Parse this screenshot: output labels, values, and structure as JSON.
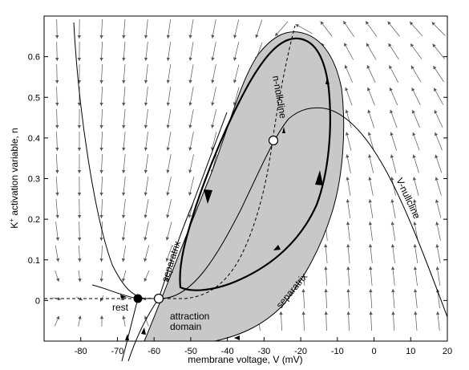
{
  "figure": {
    "x_axis_label": "membrane voltage, V (mV)",
    "y_axis_label_main": "K",
    "y_axis_label_sup": "+",
    "y_axis_label_rest": " activation variable, n",
    "x_ticks": [
      "-80",
      "-70",
      "-60",
      "-50",
      "-40",
      "-30",
      "-20",
      "-10",
      "0",
      "10",
      "20"
    ],
    "y_ticks": [
      "0",
      "0.1",
      "0.2",
      "0.3",
      "0.4",
      "0.5",
      "0.6"
    ],
    "labels": {
      "rest": "rest",
      "attraction_line1": "attraction",
      "attraction_line2": "domain",
      "separatrix_upper": "separatrix",
      "separatrix_lower": "separatrix",
      "n_nullcline": "n-nullcline",
      "v_nullcline": "V-nullcline"
    },
    "colors": {
      "shaded_domain": "#c8c8c8",
      "curves": "#000000"
    }
  },
  "chart_data": {
    "type": "phase-portrait",
    "x_axis": {
      "label": "membrane voltage, V (mV)",
      "range": [
        -90,
        20
      ],
      "ticks": [
        -80,
        -70,
        -60,
        -50,
        -40,
        -30,
        -20,
        -10,
        0,
        10,
        20
      ]
    },
    "y_axis": {
      "label": "K+ activation variable, n",
      "range": [
        -0.1,
        0.7
      ],
      "ticks": [
        0,
        0.1,
        0.2,
        0.3,
        0.4,
        0.5,
        0.6
      ]
    },
    "equilibria": [
      {
        "label": "rest",
        "V": -62,
        "n": 0.0,
        "stability": "stable"
      },
      {
        "V": -56,
        "n": 0.0,
        "stability": "saddle"
      },
      {
        "V": -27,
        "n": 0.39,
        "stability": "unstable"
      }
    ],
    "curves": [
      {
        "name": "V-nullcline",
        "points": [
          [
            -56,
            0.0
          ],
          [
            -52,
            0.02
          ],
          [
            -45,
            0.12
          ],
          [
            -38,
            0.24
          ],
          [
            -32,
            0.34
          ],
          [
            -26,
            0.42
          ],
          [
            -20,
            0.46
          ],
          [
            -14,
            0.475
          ],
          [
            -8,
            0.46
          ],
          [
            0,
            0.4
          ],
          [
            8,
            0.3
          ],
          [
            15,
            0.18
          ],
          [
            20,
            0.08
          ]
        ]
      },
      {
        "name": "n-nullcline",
        "points": [
          [
            -90,
            0.0
          ],
          [
            -60,
            0.0
          ],
          [
            -50,
            0.01
          ],
          [
            -42,
            0.06
          ],
          [
            -36,
            0.15
          ],
          [
            -31,
            0.27
          ],
          [
            -27,
            0.39
          ],
          [
            -24,
            0.5
          ],
          [
            -22,
            0.6
          ],
          [
            -21,
            0.66
          ]
        ]
      },
      {
        "name": "limit cycle",
        "points": [
          [
            -51,
            0.02
          ],
          [
            -48,
            0.04
          ],
          [
            -38,
            0.09
          ],
          [
            -28,
            0.16
          ],
          [
            -20,
            0.25
          ],
          [
            -14,
            0.38
          ],
          [
            -11,
            0.52
          ],
          [
            -13,
            0.62
          ],
          [
            -18,
            0.66
          ],
          [
            -27,
            0.62
          ],
          [
            -36,
            0.5
          ],
          [
            -44,
            0.32
          ],
          [
            -50,
            0.12
          ],
          [
            -51,
            0.02
          ]
        ]
      }
    ]
  }
}
